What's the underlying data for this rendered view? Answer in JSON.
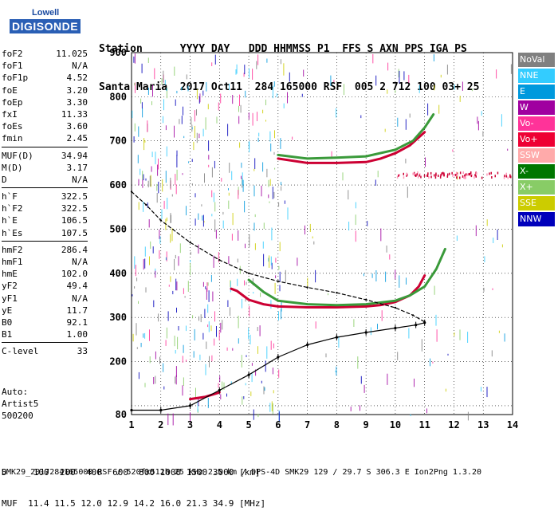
{
  "logo": {
    "line1": "Lowell",
    "line2": "DIGISONDE"
  },
  "header": {
    "row1": "Station      YYYY DAY   DDD HHMMSS P1  FFS S AXN PPS IGA PS",
    "row2": "Santa Maria  2017 Oct11  284 165000 RSF  005 2 712 100 03+ 25"
  },
  "params": {
    "group1": [
      {
        "k": "foF2",
        "v": "11.025"
      },
      {
        "k": "foF1",
        "v": "N/A"
      },
      {
        "k": "foF1p",
        "v": "4.52"
      },
      {
        "k": "foE",
        "v": "3.20"
      },
      {
        "k": "foEp",
        "v": "3.30"
      },
      {
        "k": "fxI",
        "v": "11.33"
      },
      {
        "k": "foEs",
        "v": "3.60"
      },
      {
        "k": "fmin",
        "v": "2.45"
      }
    ],
    "group2": [
      {
        "k": "MUF(D)",
        "v": "34.94"
      },
      {
        "k": "M(D)",
        "v": "3.17"
      },
      {
        "k": "D",
        "v": "N/A"
      }
    ],
    "group3": [
      {
        "k": "h`F",
        "v": "322.5"
      },
      {
        "k": "h`F2",
        "v": "322.5"
      },
      {
        "k": "h`E",
        "v": "106.5"
      },
      {
        "k": "h`Es",
        "v": "107.5"
      }
    ],
    "group4": [
      {
        "k": "hmF2",
        "v": "286.4"
      },
      {
        "k": "hmF1",
        "v": "N/A"
      },
      {
        "k": "hmE",
        "v": "102.0"
      },
      {
        "k": "yF2",
        "v": "49.4"
      },
      {
        "k": "yF1",
        "v": "N/A"
      },
      {
        "k": "yE",
        "v": "11.7"
      },
      {
        "k": "B0",
        "v": "92.1"
      },
      {
        "k": "B1",
        "v": "1.00"
      }
    ],
    "group5": [
      {
        "k": "C-level",
        "v": "33"
      }
    ]
  },
  "auto": {
    "line1": "Auto:",
    "line2": "Artist5",
    "line3": "500200"
  },
  "legend": [
    {
      "label": "NoVal",
      "color": "#808080"
    },
    {
      "label": "NNE",
      "color": "#33ccff"
    },
    {
      "label": "E",
      "color": "#0099dd"
    },
    {
      "label": "W",
      "color": "#a000a0"
    },
    {
      "label": "Vo-",
      "color": "#ff3399"
    },
    {
      "label": "Vo+",
      "color": "#ee0033"
    },
    {
      "label": "SSW",
      "color": "#ffaaaa"
    },
    {
      "label": "X-",
      "color": "#007700"
    },
    {
      "label": "X+",
      "color": "#88cc66"
    },
    {
      "label": "SSE",
      "color": "#cccc00"
    },
    {
      "label": "NNW",
      "color": "#0000bb"
    }
  ],
  "bottom": {
    "row1": "D     100  200  400  600  800 1000 1500 3000 [km]",
    "row2": "MUF  11.4 11.5 12.0 12.9 14.2 16.0 21.3 34.9 [MHz]"
  },
  "footer": "SMK29_2017284165000.RSF / 520fx512h 25 kHz 2.5 km / DPS-4D SMK29 129 / 29.7 S 306.3 E Ion2Png 1.3.20",
  "chart_data": {
    "type": "scatter",
    "xlabel": "",
    "ylabel": "",
    "xlim": [
      1,
      14
    ],
    "ylim": [
      80,
      900
    ],
    "x_ticks": [
      1,
      2,
      3,
      4,
      5,
      6,
      7,
      8,
      9,
      10,
      11,
      12,
      13,
      14
    ],
    "y_ticks": [
      100,
      200,
      300,
      400,
      500,
      600,
      700,
      800,
      900
    ],
    "y_tick_labels_shown": [
      80,
      200,
      300,
      400,
      500,
      600,
      700,
      800,
      900
    ],
    "grid": true,
    "series": [
      {
        "name": "O-trace",
        "color": "#cc0033",
        "points": [
          [
            4.4,
            365
          ],
          [
            4.6,
            360
          ],
          [
            4.8,
            350
          ],
          [
            5.0,
            340
          ],
          [
            5.5,
            330
          ],
          [
            6.0,
            325
          ],
          [
            7.0,
            323
          ],
          [
            8.0,
            323
          ],
          [
            9.0,
            325
          ],
          [
            9.5,
            328
          ],
          [
            10.0,
            335
          ],
          [
            10.5,
            350
          ],
          [
            10.8,
            370
          ],
          [
            11.0,
            395
          ]
        ]
      },
      {
        "name": "X-trace",
        "color": "#3a9a3a",
        "points": [
          [
            5.0,
            385
          ],
          [
            5.5,
            358
          ],
          [
            6.0,
            338
          ],
          [
            7.0,
            330
          ],
          [
            8.0,
            328
          ],
          [
            9.0,
            330
          ],
          [
            10.0,
            338
          ],
          [
            10.5,
            350
          ],
          [
            11.0,
            370
          ],
          [
            11.4,
            410
          ],
          [
            11.7,
            455
          ]
        ]
      },
      {
        "name": "O-trace-multi",
        "color": "#cc0033",
        "points": [
          [
            6.0,
            660
          ],
          [
            7.0,
            650
          ],
          [
            8.0,
            650
          ],
          [
            9.0,
            652
          ],
          [
            9.5,
            660
          ],
          [
            10.0,
            672
          ],
          [
            10.5,
            690
          ],
          [
            11.0,
            720
          ]
        ]
      },
      {
        "name": "X-trace-multi",
        "color": "#3a9a3a",
        "points": [
          [
            6.0,
            668
          ],
          [
            7.0,
            660
          ],
          [
            8.0,
            662
          ],
          [
            9.0,
            665
          ],
          [
            10.0,
            680
          ],
          [
            10.6,
            700
          ],
          [
            11.0,
            730
          ],
          [
            11.3,
            760
          ]
        ]
      },
      {
        "name": "Es-trace",
        "color": "#cc0033",
        "points": [
          [
            3.0,
            115
          ],
          [
            3.5,
            120
          ],
          [
            4.0,
            130
          ]
        ]
      },
      {
        "name": "true-height-profile",
        "color": "#000000",
        "points": [
          [
            1.0,
            90
          ],
          [
            2.0,
            90
          ],
          [
            3.0,
            100
          ],
          [
            4.0,
            135
          ],
          [
            5.0,
            170
          ],
          [
            6.0,
            210
          ],
          [
            7.0,
            238
          ],
          [
            8.0,
            255
          ],
          [
            9.0,
            266
          ],
          [
            10.0,
            276
          ],
          [
            10.7,
            283
          ],
          [
            11.0,
            288
          ]
        ]
      },
      {
        "name": "topside-model",
        "color": "#000000",
        "points": [
          [
            1.0,
            585
          ],
          [
            1.5,
            555
          ],
          [
            2.0,
            520
          ],
          [
            3.0,
            470
          ],
          [
            4.0,
            430
          ],
          [
            5.0,
            400
          ],
          [
            6.0,
            382
          ],
          [
            7.0,
            368
          ],
          [
            8.0,
            356
          ],
          [
            9.0,
            340
          ],
          [
            10.0,
            322
          ],
          [
            10.6,
            305
          ],
          [
            11.0,
            290
          ]
        ]
      }
    ]
  }
}
